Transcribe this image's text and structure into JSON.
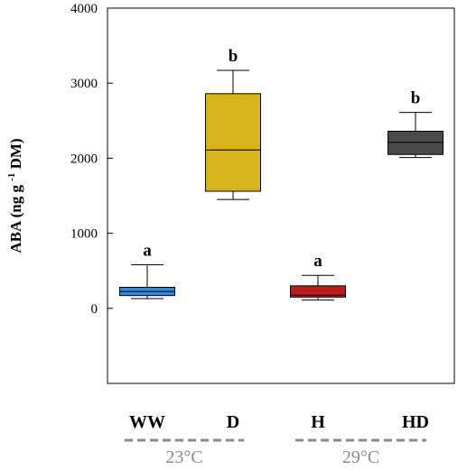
{
  "chart_data": {
    "type": "box",
    "ylabel": {
      "prefix": "ABA (ng g",
      "superscript": "-1",
      "suffix": " DM)"
    },
    "ylim": [
      -1000,
      4000
    ],
    "yticks": [
      0,
      1000,
      2000,
      3000,
      4000
    ],
    "grid": false,
    "legend": "none",
    "categories": [
      "WW",
      "D",
      "H",
      "HD"
    ],
    "boxes": [
      {
        "category": "WW",
        "min": 130,
        "q1": 170,
        "median": 225,
        "q3": 280,
        "max": 580,
        "letter": "a",
        "color": "#2d8be6"
      },
      {
        "category": "D",
        "min": 1450,
        "q1": 1560,
        "median": 2110,
        "q3": 2860,
        "max": 3170,
        "letter": "b",
        "color": "#d6b41a"
      },
      {
        "category": "H",
        "min": 110,
        "q1": 150,
        "median": 175,
        "q3": 300,
        "max": 440,
        "letter": "a",
        "color": "#b51e1e"
      },
      {
        "category": "HD",
        "min": 2010,
        "q1": 2050,
        "median": 2210,
        "q3": 2360,
        "max": 2610,
        "letter": "b",
        "color": "#4a4a4a"
      }
    ],
    "groups": [
      {
        "label": "23°C",
        "categories": [
          "WW",
          "D"
        ]
      },
      {
        "label": "29°C",
        "categories": [
          "H",
          "HD"
        ]
      }
    ]
  }
}
